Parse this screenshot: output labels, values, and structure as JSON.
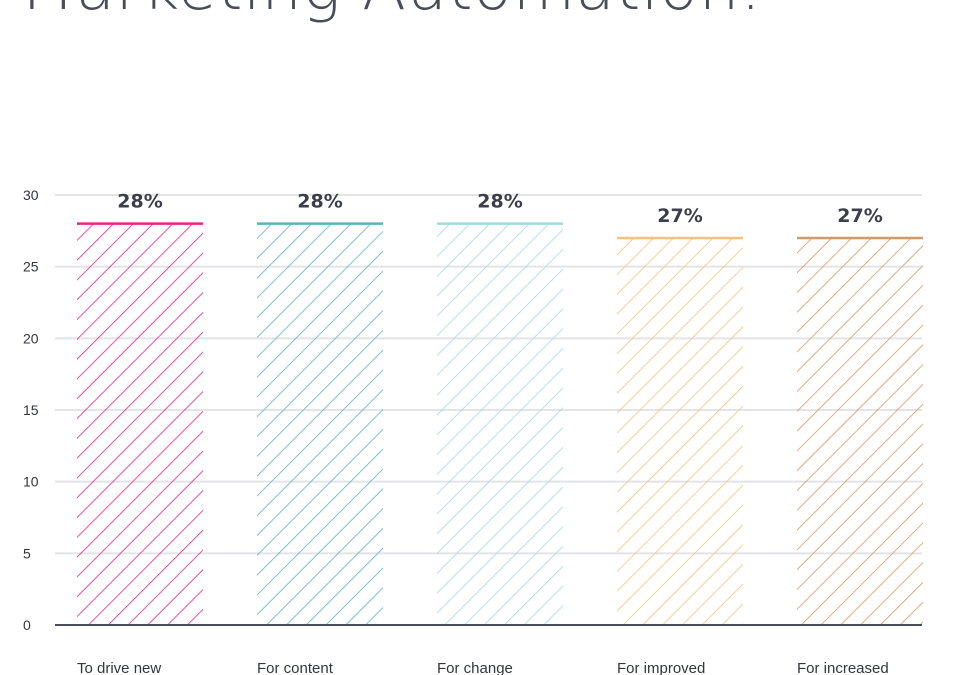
{
  "title": "Marketing Automation:",
  "chart_data": {
    "type": "bar",
    "categories": [
      "To drive new",
      "For content",
      "For change",
      "For improved",
      "For increased"
    ],
    "values": [
      28,
      28,
      28,
      27,
      27
    ],
    "value_labels": [
      "28%",
      "28%",
      "28%",
      "27%",
      "27%"
    ],
    "colors": [
      "#f0237f",
      "#5fb3b8",
      "#a3dadd",
      "#f5c27d",
      "#d29a66"
    ],
    "fill_pattern": "diagonal-hatch",
    "ylim": [
      0,
      30
    ],
    "yticks": [
      "0",
      "5",
      "10",
      "15",
      "20",
      "25",
      "30"
    ],
    "grid": true,
    "xlabel": "",
    "ylabel": ""
  }
}
